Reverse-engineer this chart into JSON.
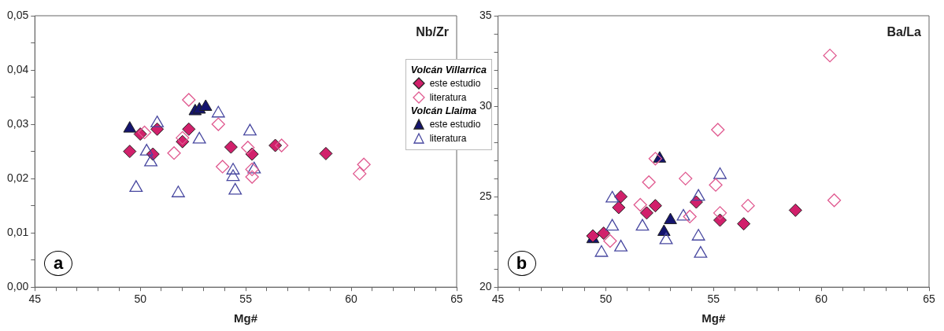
{
  "chart_data": [
    {
      "type": "scatter",
      "title": "Nb/Zr",
      "xlabel": "Mg#",
      "annotations": [
        "a",
        "Volcán Villarrica",
        "Volcán Llaima"
      ],
      "legend": "right",
      "grid": false,
      "xlim": [
        45,
        65
      ],
      "ylim": [
        0,
        0.05
      ],
      "xticks": [
        45,
        {
          "value": 46,
          "label": null
        },
        {
          "value": 47,
          "label": null
        },
        {
          "value": 48,
          "label": null
        },
        {
          "value": 49,
          "label": null
        },
        50,
        {
          "value": 51,
          "label": null
        },
        {
          "value": 52,
          "label": null
        },
        {
          "value": 53,
          "label": null
        },
        {
          "value": 54,
          "label": null
        },
        55,
        {
          "value": 56,
          "label": null
        },
        {
          "value": 57,
          "label": null
        },
        {
          "value": 58,
          "label": null
        },
        {
          "value": 59,
          "label": null
        },
        60,
        {
          "value": 61,
          "label": null
        },
        {
          "value": 62,
          "label": null
        },
        {
          "value": 63,
          "label": null
        },
        {
          "value": 64,
          "label": null
        },
        65
      ],
      "yticks": [
        {
          "value": 0,
          "label": "0,00"
        },
        {
          "value": 0.005,
          "label": null
        },
        {
          "value": 0.01,
          "label": "0,01"
        },
        {
          "value": 0.015,
          "label": null
        },
        {
          "value": 0.02,
          "label": "0,02"
        },
        {
          "value": 0.025,
          "label": null
        },
        {
          "value": 0.03,
          "label": "0,03"
        },
        {
          "value": 0.035,
          "label": null
        },
        {
          "value": 0.04,
          "label": "0,04"
        },
        {
          "value": 0.045,
          "label": null
        },
        {
          "value": 0.05,
          "label": "0,05"
        }
      ],
      "series": [
        {
          "name": "literatura",
          "color": "#e05a90",
          "marker": "diamond",
          "x": [
            52.3,
            50.2,
            52.0,
            51.6,
            53.7,
            53.9,
            55.1,
            55.3,
            55.3,
            56.7,
            60.6,
            60.4
          ],
          "values": [
            0.0345,
            0.0285,
            0.0275,
            0.0247,
            0.03,
            0.0222,
            0.0257,
            0.0217,
            0.0203,
            0.0261,
            0.0226,
            0.0209
          ]
        },
        {
          "name": "literatura",
          "color": "#4848a0",
          "marker": "triangle",
          "x": [
            50.8,
            50.3,
            50.5,
            49.8,
            51.8,
            52.8,
            53.7,
            55.2,
            54.4,
            54.4,
            54.5,
            55.4
          ],
          "values": [
            0.0302,
            0.025,
            0.023,
            0.0183,
            0.0173,
            0.0272,
            0.032,
            0.0287,
            0.0215,
            0.0203,
            0.0178,
            0.0217
          ]
        },
        {
          "name": "este estudio",
          "color": "#d1206b",
          "marker": "diamond",
          "x": [
            49.5,
            50.0,
            50.8,
            50.6,
            52.3,
            52.0,
            54.3,
            55.3,
            56.4,
            58.8
          ],
          "values": [
            0.025,
            0.0282,
            0.0291,
            0.0245,
            0.0291,
            0.0268,
            0.0258,
            0.0245,
            0.0261,
            0.0246
          ]
        },
        {
          "name": "este estudio",
          "color": "#14146e",
          "marker": "triangle",
          "x": [
            49.5,
            52.6,
            52.8,
            53.1
          ],
          "values": [
            0.0292,
            0.0324,
            0.0327,
            0.0332
          ]
        }
      ]
    },
    {
      "type": "scatter",
      "title": "Ba/La",
      "xlabel": "Mg#",
      "annotations": [
        "b"
      ],
      "legend": false,
      "grid": false,
      "xlim": [
        45,
        65
      ],
      "ylim": [
        20,
        35
      ],
      "xticks": [
        45,
        {
          "value": 46,
          "label": null
        },
        {
          "value": 47,
          "label": null
        },
        {
          "value": 48,
          "label": null
        },
        {
          "value": 49,
          "label": null
        },
        50,
        {
          "value": 51,
          "label": null
        },
        {
          "value": 52,
          "label": null
        },
        {
          "value": 53,
          "label": null
        },
        {
          "value": 54,
          "label": null
        },
        55,
        {
          "value": 56,
          "label": null
        },
        {
          "value": 57,
          "label": null
        },
        {
          "value": 58,
          "label": null
        },
        {
          "value": 59,
          "label": null
        },
        60,
        {
          "value": 61,
          "label": null
        },
        {
          "value": 62,
          "label": null
        },
        {
          "value": 63,
          "label": null
        },
        {
          "value": 64,
          "label": null
        },
        65
      ],
      "yticks": [
        20,
        {
          "value": 21,
          "label": null
        },
        {
          "value": 22,
          "label": null
        },
        {
          "value": 23,
          "label": null
        },
        {
          "value": 24,
          "label": null
        },
        25,
        {
          "value": 26,
          "label": null
        },
        {
          "value": 27,
          "label": null
        },
        {
          "value": 28,
          "label": null
        },
        {
          "value": 29,
          "label": null
        },
        30,
        {
          "value": 31,
          "label": null
        },
        {
          "value": 32,
          "label": null
        },
        {
          "value": 33,
          "label": null
        },
        {
          "value": 34,
          "label": null
        },
        35
      ],
      "series": [
        {
          "color": "#e05a90",
          "marker": "diamond",
          "x": [
            60.4,
            55.2,
            52.3,
            52.0,
            53.7,
            55.1,
            60.6,
            56.6,
            51.6,
            55.3,
            53.9,
            50.2
          ],
          "values": [
            32.8,
            28.7,
            27.1,
            25.8,
            26.0,
            25.65,
            24.8,
            24.5,
            24.55,
            24.1,
            23.9,
            22.55
          ]
        },
        {
          "color": "#4848a0",
          "marker": "triangle",
          "x": [
            50.3,
            50.3,
            50.7,
            49.8,
            51.7,
            52.8,
            53.6,
            54.3,
            55.3,
            54.3,
            54.4
          ],
          "values": [
            24.9,
            23.35,
            22.2,
            21.9,
            23.35,
            22.6,
            23.9,
            25.0,
            26.2,
            22.8,
            21.85
          ]
        },
        {
          "color": "#d1206b",
          "marker": "diamond",
          "x": [
            49.4,
            49.9,
            50.6,
            50.7,
            51.9,
            52.3,
            54.2,
            55.3,
            56.4,
            58.8
          ],
          "values": [
            22.83,
            22.98,
            24.4,
            25.0,
            24.1,
            24.5,
            24.7,
            23.7,
            23.5,
            24.25
          ]
        },
        {
          "color": "#14146e",
          "marker": "triangle",
          "x": [
            52.5,
            53.0,
            52.7,
            49.4
          ],
          "values": [
            27.1,
            23.7,
            23.05,
            22.65
          ]
        }
      ]
    }
  ]
}
